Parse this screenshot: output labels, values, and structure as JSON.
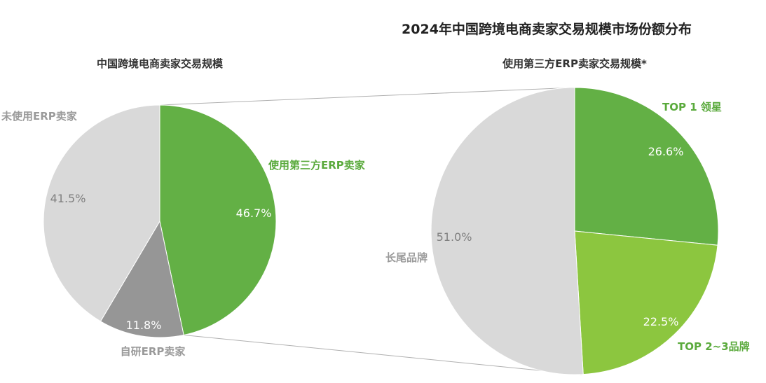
{
  "title": "2024年中国跨境电商卖家交易规模市场份额分布",
  "colors": {
    "green_dark": "#63b045",
    "green_light": "#8cc63f",
    "gray_light": "#d9d9d9",
    "gray_mid": "#969696",
    "connector": "#b0b0b0",
    "label_green": "#5aaa3c",
    "label_gray": "#9a9a9a"
  },
  "chart_data": [
    {
      "type": "pie",
      "title": "中国跨境电商卖家交易规模",
      "slices": [
        {
          "label": "使用第三方ERP卖家",
          "value": 46.7,
          "value_label": "46.7%",
          "color": "#63b045"
        },
        {
          "label": "自研ERP卖家",
          "value": 11.8,
          "value_label": "11.8%",
          "color": "#969696"
        },
        {
          "label": "未使用ERP卖家",
          "value": 41.5,
          "value_label": "41.5%",
          "color": "#d9d9d9"
        }
      ]
    },
    {
      "type": "pie",
      "title": "使用第三方ERP卖家交易规模*",
      "slices": [
        {
          "label": "TOP 1 领星",
          "value": 26.6,
          "value_label": "26.6%",
          "color": "#63b045"
        },
        {
          "label": "TOP 2~3品牌",
          "value": 22.5,
          "value_label": "22.5%",
          "color": "#8cc63f"
        },
        {
          "label": "长尾品牌",
          "value": 51.0,
          "value_label": "51.0%",
          "color": "#d9d9d9"
        }
      ]
    }
  ]
}
